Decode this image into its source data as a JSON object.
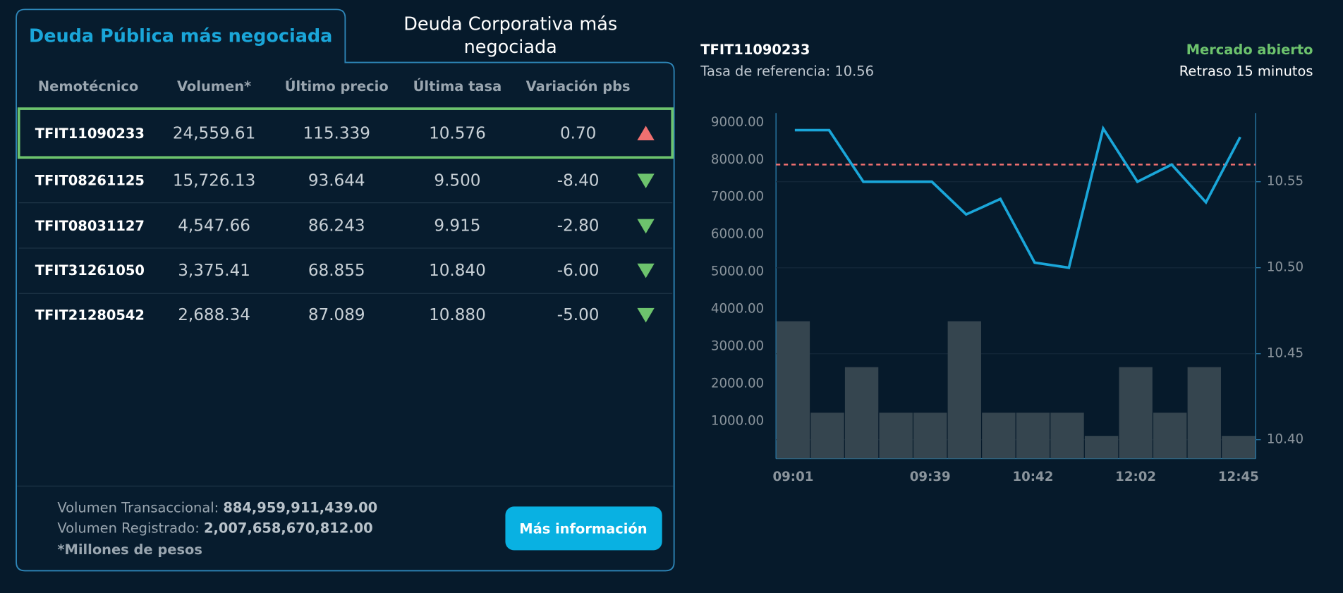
{
  "tabs": [
    "Deuda Pública más negociada",
    "Deuda Corporativa más negociada"
  ],
  "table": {
    "headers": [
      "Nemotécnico",
      "Volumen*",
      "Último precio",
      "Última tasa",
      "Variación pbs"
    ],
    "rows": [
      [
        "TFIT11090233",
        "24,559.61",
        "115.339",
        "10.576",
        "0.70"
      ],
      [
        "TFIT08261125",
        "15,726.13",
        "93.644",
        "9.500",
        "-8.40"
      ],
      [
        "TFIT08031127",
        "4,547.66",
        "86.243",
        "9.915",
        "-2.80"
      ],
      [
        "TFIT31261050",
        "3,375.41",
        "68.855",
        "10.840",
        "-6.00"
      ],
      [
        "TFIT21280542",
        "2,688.34",
        "87.089",
        "10.880",
        "-5.00"
      ]
    ]
  },
  "footer": {
    "transaccional_label": "Volumen Transaccional:",
    "transaccional_value": "884,959,911,439.00",
    "registrado_label": "Volumen Registrado:",
    "registrado_value": "2,007,658,670,812.00",
    "note": "*Millones de pesos",
    "button": "Más información"
  },
  "market": {
    "status": "Mercado abierto",
    "delay": "Retraso 15 minutos"
  },
  "chart_data": {
    "type": "combo",
    "title": "TFIT11090233",
    "reference_label": "Tasa de referencia:",
    "reference_value": 10.56,
    "categories": [
      "09:01",
      null,
      null,
      null,
      "09:39",
      null,
      null,
      "10:42",
      null,
      null,
      "12:02",
      null,
      null,
      "12:45"
    ],
    "bar_values": [
      3680,
      1230,
      2450,
      1230,
      1230,
      3680,
      1230,
      1230,
      1230,
      610,
      2450,
      1230,
      2450,
      610
    ],
    "bar_color": "#35454f",
    "line_values": [
      10.58,
      10.58,
      10.55,
      10.55,
      10.55,
      10.531,
      10.54,
      10.503,
      10.5,
      10.581,
      10.55,
      10.56,
      10.538,
      10.576
    ],
    "line_color": "#1aa6d9",
    "reference_color": "#f07070",
    "ylim": [
      0,
      9257
    ],
    "yticks": [
      {
        "value": 1000,
        "label": "1000.00"
      },
      {
        "value": 2000,
        "label": "2000.00"
      },
      {
        "value": 3000,
        "label": "3000.00"
      },
      {
        "value": 4000,
        "label": "4000.00"
      },
      {
        "value": 5000,
        "label": "5000.00"
      },
      {
        "value": 6000,
        "label": "6000.00"
      },
      {
        "value": 7000,
        "label": "7000.00"
      },
      {
        "value": 8000,
        "label": "8000.00"
      },
      {
        "value": 9000,
        "label": "9000.00"
      }
    ],
    "y2lim": [
      10.389,
      10.59
    ],
    "y2ticks": [
      {
        "value": 10.4,
        "label": "10.40"
      },
      10.45,
      {
        "value": 10.5,
        "label": "10.50"
      },
      10.55
    ],
    "grid": true
  }
}
